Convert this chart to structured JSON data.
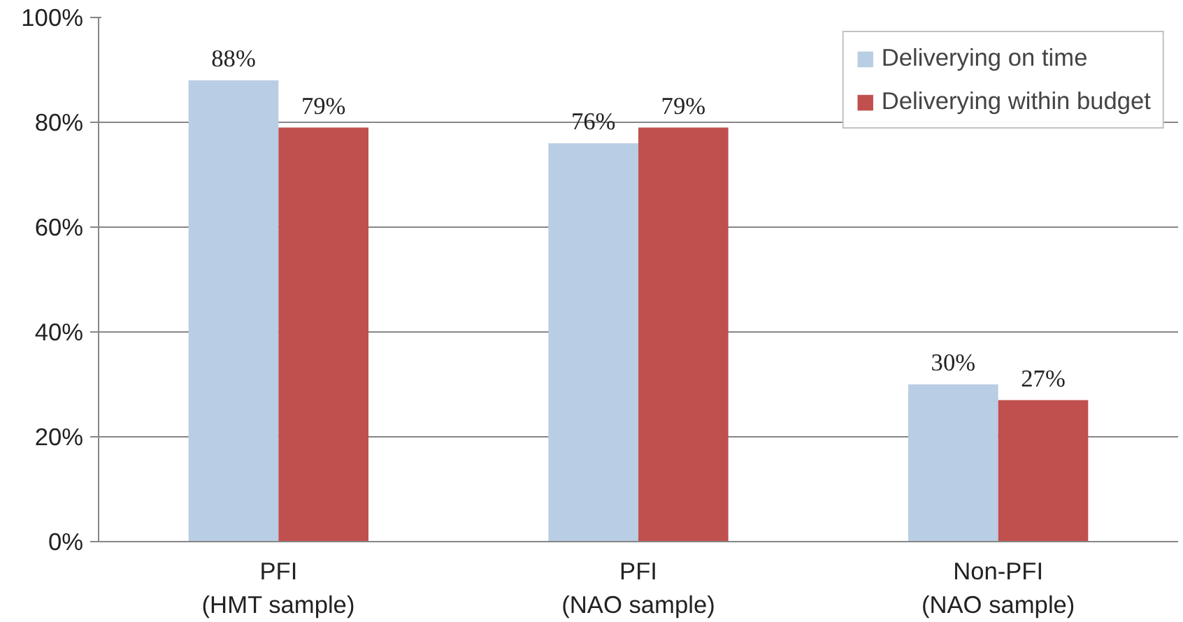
{
  "chart_data": {
    "type": "bar",
    "categories": [
      "PFI\n(HMT sample)",
      "PFI\n(NAO sample)",
      "Non-PFI\n(NAO sample)"
    ],
    "series": [
      {
        "name": "Deliverying on time",
        "color": "#b9cde5",
        "values": [
          88,
          76,
          30
        ],
        "value_labels": [
          "88%",
          "76%",
          "30%"
        ]
      },
      {
        "name": "Deliverying within budget",
        "color": "#c0504d",
        "values": [
          79,
          79,
          27
        ],
        "value_labels": [
          "79%",
          "79%",
          "27%"
        ]
      }
    ],
    "ylim": [
      0,
      100
    ],
    "yticks": [
      {
        "value": 0,
        "label": "0%"
      },
      {
        "value": 20,
        "label": "20%"
      },
      {
        "value": 40,
        "label": "40%"
      },
      {
        "value": 60,
        "label": "60%"
      },
      {
        "value": 80,
        "label": "80%"
      },
      {
        "value": 100,
        "label": "100%"
      }
    ],
    "grid": "y",
    "legend": "top right"
  }
}
